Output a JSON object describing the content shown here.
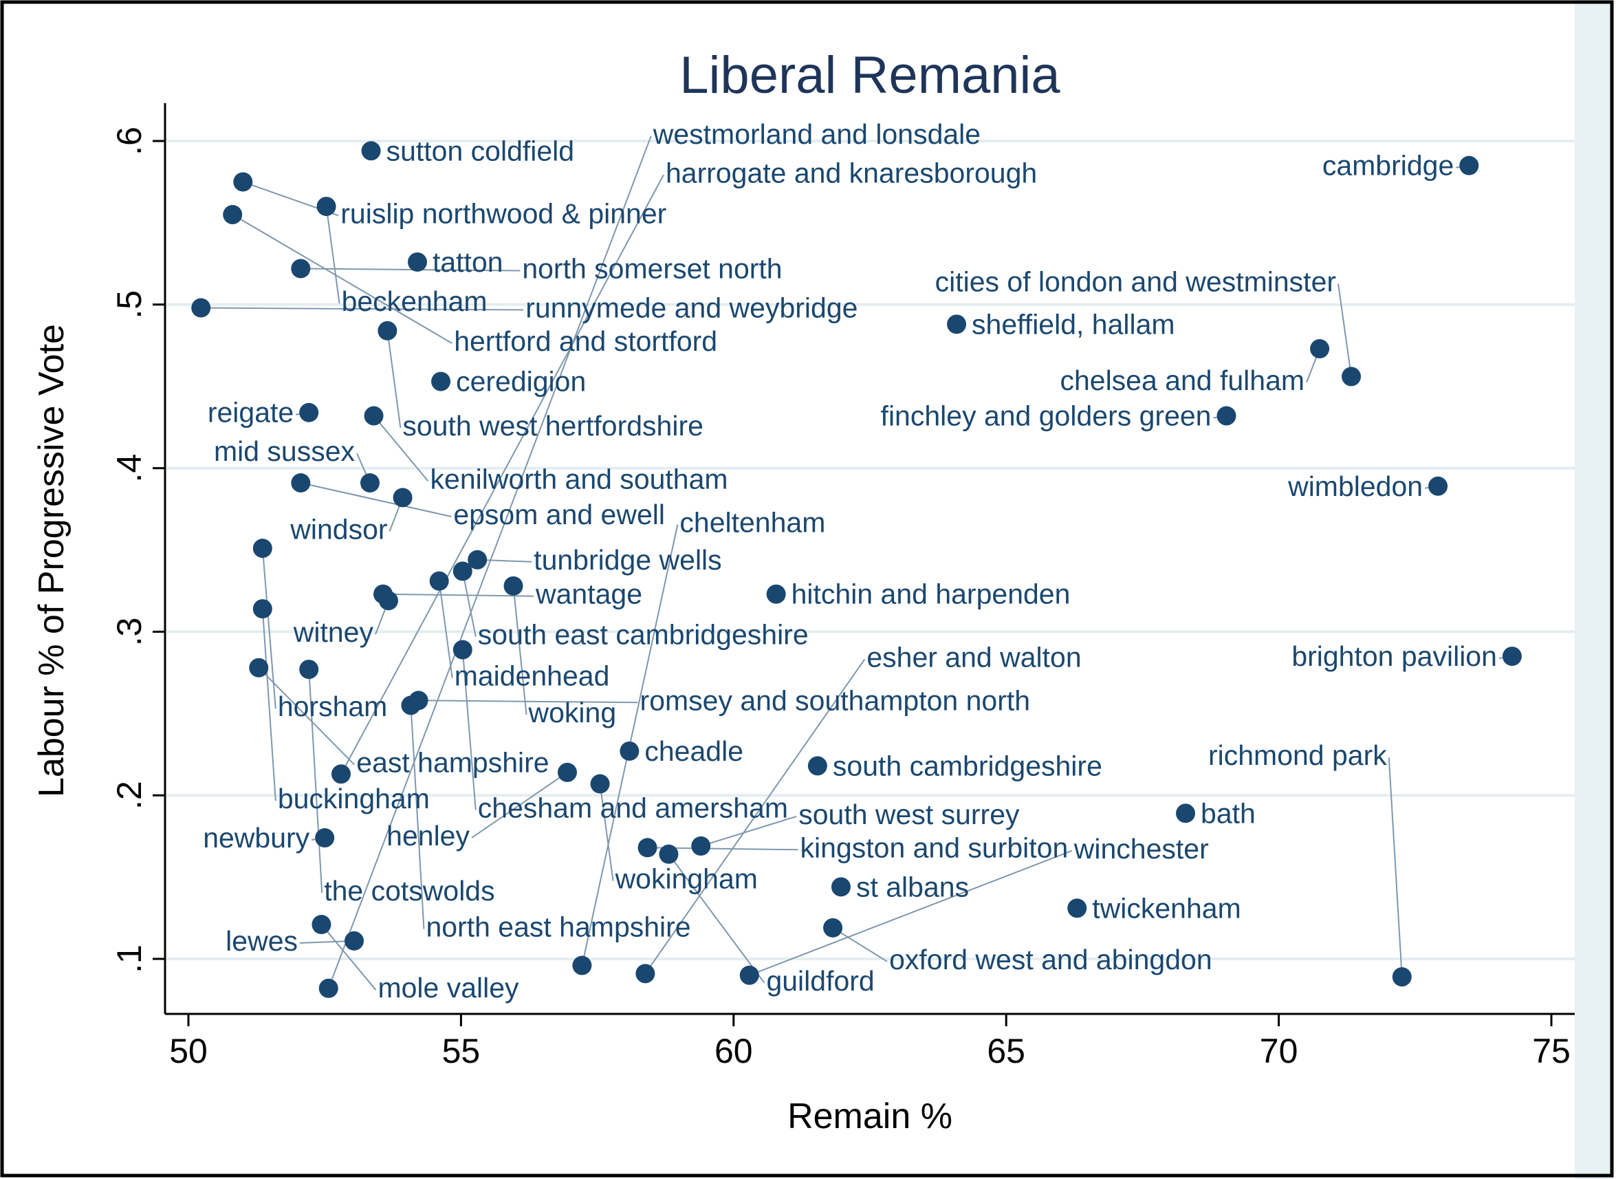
{
  "chart_data": {
    "type": "scatter",
    "title": "Liberal Remania",
    "xlabel": "Remain %",
    "ylabel": "Labour % of Progressive Vote",
    "xlim": [
      49.6,
      75.4
    ],
    "ylim": [
      0.067,
      0.64
    ],
    "xticks": [
      50,
      55,
      60,
      65,
      70,
      75
    ],
    "xtick_labels": [
      "50",
      "55",
      "60",
      "65",
      "70",
      "75"
    ],
    "yticks": [
      0.1,
      0.2,
      0.3,
      0.4,
      0.5,
      0.6
    ],
    "ytick_labels": [
      ".1",
      ".2",
      ".3",
      ".4",
      ".5",
      ".6"
    ],
    "grid": true,
    "marker_color": "#1a476f",
    "points": [
      {
        "label": "sutton coldfield",
        "x": 53.35,
        "y": 0.594
      },
      {
        "label": "ruislip northwood & pinner",
        "x": 51.0,
        "y": 0.575
      },
      {
        "label": "beckenham",
        "x": 52.53,
        "y": 0.56
      },
      {
        "label": "hertford and stortford",
        "x": 50.81,
        "y": 0.555
      },
      {
        "label": "tatton",
        "x": 54.2,
        "y": 0.526
      },
      {
        "label": "north somerset north",
        "x": 52.06,
        "y": 0.522
      },
      {
        "label": "runnymede and weybridge",
        "x": 50.23,
        "y": 0.498
      },
      {
        "label": "south west hertfordshire",
        "x": 53.65,
        "y": 0.484
      },
      {
        "label": "sheffield, hallam",
        "x": 64.09,
        "y": 0.488
      },
      {
        "label": "cambridge",
        "x": 73.49,
        "y": 0.585
      },
      {
        "label": "chelsea and fulham",
        "x": 70.75,
        "y": 0.473
      },
      {
        "label": "cities of london and westminster",
        "x": 71.33,
        "y": 0.456
      },
      {
        "label": "ceredigion",
        "x": 54.63,
        "y": 0.453
      },
      {
        "label": "reigate",
        "x": 52.21,
        "y": 0.434
      },
      {
        "label": "kenilworth and southam",
        "x": 53.4,
        "y": 0.432
      },
      {
        "label": "finchley and golders green",
        "x": 69.04,
        "y": 0.432
      },
      {
        "label": "epsom and ewell",
        "x": 52.06,
        "y": 0.391
      },
      {
        "label": "mid sussex",
        "x": 53.33,
        "y": 0.391
      },
      {
        "label": "windsor",
        "x": 53.93,
        "y": 0.382
      },
      {
        "label": "wimbledon",
        "x": 72.92,
        "y": 0.389
      },
      {
        "label": "horsham",
        "x": 51.36,
        "y": 0.351
      },
      {
        "label": "tunbridge wells",
        "x": 55.3,
        "y": 0.344
      },
      {
        "label": "south east cambridgeshire",
        "x": 55.03,
        "y": 0.337
      },
      {
        "label": "maidenhead",
        "x": 54.6,
        "y": 0.331
      },
      {
        "label": "woking",
        "x": 55.96,
        "y": 0.328
      },
      {
        "label": "wantage",
        "x": 53.57,
        "y": 0.323
      },
      {
        "label": "witney",
        "x": 53.67,
        "y": 0.319
      },
      {
        "label": "hitchin and harpenden",
        "x": 60.78,
        "y": 0.323
      },
      {
        "label": "buckingham",
        "x": 51.36,
        "y": 0.314
      },
      {
        "label": "chesham and amersham",
        "x": 55.03,
        "y": 0.289
      },
      {
        "label": "brighton pavilion",
        "x": 74.28,
        "y": 0.285
      },
      {
        "label": "east hampshire",
        "x": 51.29,
        "y": 0.278
      },
      {
        "label": "the cotswolds",
        "x": 52.21,
        "y": 0.277
      },
      {
        "label": "romsey and southampton north",
        "x": 54.22,
        "y": 0.258
      },
      {
        "label": "north east hampshire",
        "x": 54.08,
        "y": 0.255
      },
      {
        "label": "cheadle",
        "x": 58.09,
        "y": 0.227
      },
      {
        "label": "harrogate and knaresborough",
        "x": 52.8,
        "y": 0.213
      },
      {
        "label": "henley",
        "x": 56.95,
        "y": 0.214
      },
      {
        "label": "wokingham",
        "x": 57.55,
        "y": 0.207
      },
      {
        "label": "south cambridgeshire",
        "x": 61.54,
        "y": 0.218
      },
      {
        "label": "bath",
        "x": 68.29,
        "y": 0.189
      },
      {
        "label": "newbury",
        "x": 52.5,
        "y": 0.174
      },
      {
        "label": "kingston and surbiton",
        "x": 58.42,
        "y": 0.168
      },
      {
        "label": "south west surrey",
        "x": 59.4,
        "y": 0.169
      },
      {
        "label": "guildford",
        "x": 58.81,
        "y": 0.164
      },
      {
        "label": "st albans",
        "x": 61.97,
        "y": 0.144
      },
      {
        "label": "twickenham",
        "x": 66.3,
        "y": 0.131
      },
      {
        "label": "oxford west and abingdon",
        "x": 61.82,
        "y": 0.119
      },
      {
        "label": "mole valley",
        "x": 52.44,
        "y": 0.121
      },
      {
        "label": "lewes",
        "x": 53.04,
        "y": 0.111
      },
      {
        "label": "cheltenham",
        "x": 57.22,
        "y": 0.096
      },
      {
        "label": "esher and walton",
        "x": 58.38,
        "y": 0.091
      },
      {
        "label": "winchester",
        "x": 60.29,
        "y": 0.09
      },
      {
        "label": "westmorland and lonsdale",
        "x": 52.57,
        "y": 0.082
      },
      {
        "label": "richmond park",
        "x": 72.26,
        "y": 0.089
      }
    ]
  }
}
